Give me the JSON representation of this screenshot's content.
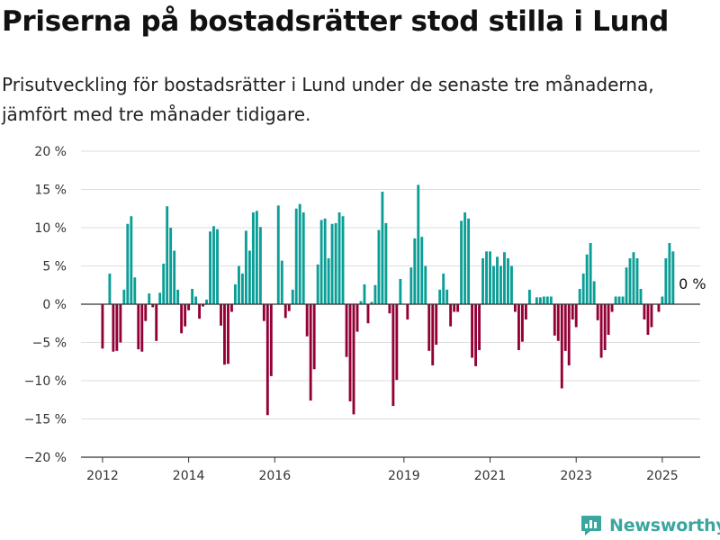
{
  "page": {
    "title": "Priserna på bostadsrätter stod stilla i Lund",
    "subtitle": "Prisutveckling för bostadsrätter i Lund under de senaste tre månaderna, jämfört med tre månader tidigare.",
    "brand": "Newsworthy"
  },
  "colors": {
    "positive": "#0a9e96",
    "negative": "#930036",
    "grid": "#dddddd",
    "axis": "#333333",
    "brand": "#3aa6a0"
  },
  "chart_data": {
    "type": "bar",
    "title": "Priserna på bostadsrätter stod stilla i Lund",
    "ylim": [
      -20,
      20
    ],
    "yticks": [
      -20,
      -15,
      -10,
      -5,
      0,
      5,
      10,
      15,
      20
    ],
    "ytick_labels": [
      "−20 %",
      "−15 %",
      "−10 %",
      "−5 %",
      "0 %",
      "5 %",
      "10 %",
      "15 %",
      "20 %"
    ],
    "xlim": [
      2011.5,
      2025.88
    ],
    "xticks": [
      2012,
      2014,
      2016,
      2019,
      2021,
      2023,
      2025
    ],
    "xtick_labels": [
      "2012",
      "2014",
      "2016",
      "2019",
      "2021",
      "2023",
      "2025"
    ],
    "annotation": {
      "text": "0 %",
      "x": 2025.38,
      "y": 0
    },
    "series": [
      {
        "x": [
          2012.0,
          2012.083,
          2012.167,
          2012.25,
          2012.333,
          2012.417,
          2012.5,
          2012.583,
          2012.667,
          2012.75,
          2012.833,
          2012.917,
          2013.0,
          2013.083,
          2013.167,
          2013.25,
          2013.333,
          2013.417,
          2013.5,
          2013.583,
          2013.667,
          2013.75,
          2013.833,
          2013.917,
          2014.0,
          2014.083,
          2014.167,
          2014.25,
          2014.333,
          2014.417,
          2014.5,
          2014.583,
          2014.667,
          2014.75,
          2014.833,
          2014.917,
          2015.0,
          2015.083,
          2015.167,
          2015.25,
          2015.333,
          2015.417,
          2015.5,
          2015.583,
          2015.667,
          2015.75,
          2015.833,
          2015.917,
          2016.0,
          2016.083,
          2016.167,
          2016.25,
          2016.333,
          2016.417,
          2016.5,
          2016.583,
          2016.667,
          2016.75,
          2016.833,
          2016.917,
          2017.0,
          2017.083,
          2017.167,
          2017.25,
          2017.333,
          2017.417,
          2017.5,
          2017.583,
          2017.667,
          2017.75,
          2017.833,
          2017.917,
          2018.0,
          2018.083,
          2018.167,
          2018.25,
          2018.333,
          2018.417,
          2018.5,
          2018.583,
          2018.667,
          2018.75,
          2018.833,
          2018.917,
          2019.0,
          2019.083,
          2019.167,
          2019.25,
          2019.333,
          2019.417,
          2019.5,
          2019.583,
          2019.667,
          2019.75,
          2019.833,
          2019.917,
          2020.0,
          2020.083,
          2020.167,
          2020.25,
          2020.333,
          2020.417,
          2020.5,
          2020.583,
          2020.667,
          2020.75,
          2020.833,
          2020.917,
          2021.0,
          2021.083,
          2021.167,
          2021.25,
          2021.333,
          2021.417,
          2021.5,
          2021.583,
          2021.667,
          2021.75,
          2021.833,
          2021.917,
          2022.0,
          2022.083,
          2022.167,
          2022.25,
          2022.333,
          2022.417,
          2022.5,
          2022.583,
          2022.667,
          2022.75,
          2022.833,
          2022.917,
          2023.0,
          2023.083,
          2023.167,
          2023.25,
          2023.333,
          2023.417,
          2023.5,
          2023.583,
          2023.667,
          2023.75,
          2023.833,
          2023.917,
          2024.0,
          2024.083,
          2024.167,
          2024.25,
          2024.333,
          2024.417,
          2024.5,
          2024.583,
          2024.667,
          2024.75,
          2024.833,
          2024.917,
          2025.0,
          2025.083,
          2025.167,
          2025.25,
          2025.333
        ],
        "values": [
          -5.8,
          0,
          4.0,
          -6.2,
          -6.1,
          -5.0,
          1.9,
          10.5,
          11.5,
          3.5,
          -5.9,
          -6.2,
          -2.2,
          1.4,
          -0.4,
          -4.8,
          1.5,
          5.3,
          12.8,
          10.0,
          7.0,
          1.9,
          -3.8,
          -2.9,
          -0.8,
          2.0,
          1.0,
          -1.9,
          -0.3,
          0.6,
          9.5,
          10.2,
          9.8,
          -2.8,
          -7.9,
          -7.8,
          -1.0,
          2.6,
          5.0,
          4.0,
          9.6,
          7.0,
          12.0,
          12.2,
          10.1,
          -2.2,
          -14.5,
          -9.4,
          0,
          12.9,
          5.7,
          -1.8,
          -0.9,
          1.9,
          12.5,
          13.1,
          12.0,
          -4.2,
          -12.6,
          -8.5,
          5.2,
          11.0,
          11.2,
          6.0,
          10.5,
          10.6,
          12.0,
          11.5,
          -6.9,
          -12.7,
          -14.4,
          -3.6,
          0.4,
          2.6,
          -2.5,
          0.3,
          2.5,
          9.7,
          14.7,
          10.6,
          -1.2,
          -13.3,
          -9.9,
          3.3,
          0,
          -2.0,
          4.8,
          8.6,
          15.6,
          8.8,
          5.0,
          -6.1,
          -8.0,
          -5.3,
          1.9,
          4.0,
          1.9,
          -2.9,
          -1.0,
          -1.0,
          10.9,
          12.0,
          11.2,
          -7.0,
          -8.1,
          -6.0,
          6.0,
          6.9,
          6.9,
          5.0,
          6.2,
          5.0,
          6.8,
          6.0,
          5.0,
          -1.0,
          -6.0,
          -4.9,
          -2.0,
          1.9,
          0,
          0.9,
          0.9,
          1.0,
          1.0,
          1.0,
          -4.1,
          -4.8,
          -11.0,
          -6.1,
          -8.0,
          -2.0,
          -3.0,
          2.0,
          4.0,
          6.5,
          8.0,
          3.0,
          -2.1,
          -7.0,
          -6.0,
          -4.0,
          -1.0,
          1.0,
          1.0,
          1.0,
          4.8,
          6.0,
          6.8,
          6.0,
          2.0,
          -2.0,
          -4.0,
          -3.0,
          0,
          -1.0,
          1.0,
          6.0,
          8.0,
          6.9,
          0
        ]
      }
    ]
  }
}
